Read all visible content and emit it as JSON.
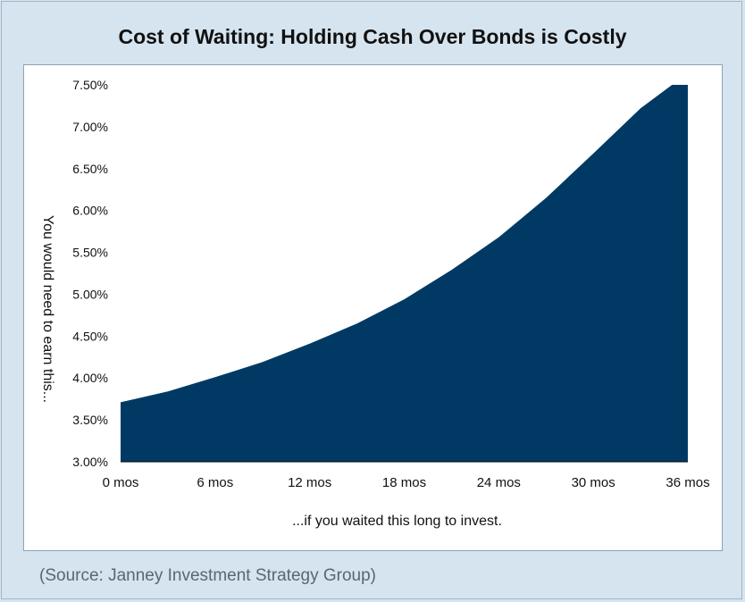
{
  "title": "Cost of Waiting: Holding Cash Over Bonds is Costly",
  "source": "(Source: Janney Investment Strategy Group)",
  "colors": {
    "fill": "#003a64",
    "background": "#d6e4ef",
    "panel": "#ffffff"
  },
  "chart_data": {
    "type": "area",
    "title": "Cost of Waiting: Holding Cash Over Bonds is Costly",
    "xlabel": "...if you waited this long to invest.",
    "ylabel": "You would need to earn this...",
    "x": [
      0,
      3,
      6,
      9,
      12,
      15,
      18,
      21,
      24,
      27,
      30,
      33,
      35,
      36
    ],
    "y": [
      3.71,
      3.84,
      4.01,
      4.19,
      4.41,
      4.65,
      4.94,
      5.29,
      5.68,
      6.15,
      6.68,
      7.22,
      7.5,
      7.5
    ],
    "xticks": [
      0,
      6,
      12,
      18,
      24,
      30,
      36
    ],
    "xtick_labels": [
      "0 mos",
      "6 mos",
      "12 mos",
      "18 mos",
      "24 mos",
      "30 mos",
      "36 mos"
    ],
    "yticks": [
      3.0,
      3.5,
      4.0,
      4.5,
      5.0,
      5.5,
      6.0,
      6.5,
      7.0,
      7.5
    ],
    "ytick_labels": [
      "3.00%",
      "3.50%",
      "4.00%",
      "4.50%",
      "5.00%",
      "5.50%",
      "6.00%",
      "6.50%",
      "7.00%",
      "7.50%"
    ],
    "xlim": [
      0,
      36
    ],
    "ylim": [
      3.0,
      7.5
    ],
    "grid": false,
    "legend": "none"
  }
}
